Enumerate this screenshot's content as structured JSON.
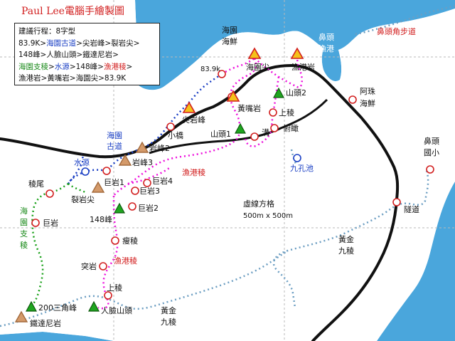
{
  "title": "Paul Lee電腦手繪製圖",
  "legend": {
    "header": "建議行程：8字型",
    "line1": [
      "83.9K>",
      "海園古道",
      ">尖岩峰>裂岩尖>"
    ],
    "line2": [
      "148峰>人臉山頭>鐵達尼岩>"
    ],
    "line3": [
      "海園支稜",
      ">",
      "水源",
      ">148峰>",
      "漁港稜",
      ">"
    ],
    "line4": [
      "漁港岩>黃嘴岩>海園尖>83.9K"
    ]
  },
  "labels": {
    "haiyuan_seafood": [
      "海園",
      "海鮮"
    ],
    "marker_839k": "83.9k",
    "haiyuan_peak": "海園尖",
    "fishing_port_rock": "漁港岩",
    "bitou_port": [
      "鼻頭",
      "漁港"
    ],
    "bitou_cape_trail": "鼻頭角步道",
    "azhu_seafood": [
      "阿珠",
      "海鮮"
    ],
    "mountain_2": "山頭2",
    "upper_ridge_right": "上稜",
    "yellow_beak_rock": "黃嘴岩",
    "sharp_rock_peak": "尖岩峰",
    "mountain_1": "山頭1",
    "gully": "溝",
    "overlook": "俯瞰",
    "nine_hole_pool": "九孔池",
    "small_bridge": "小橋",
    "haiyuan_old_trail": [
      "海園",
      "古道"
    ],
    "rock_peak_2": "岩峰2",
    "rock_peak_3": "岩峰3",
    "water_source": "水源",
    "giant_rock_1": "巨岩1",
    "giant_rock_4": "巨岩4",
    "giant_rock_3": "巨岩3",
    "giant_rock_2": "巨岩2",
    "fishing_port_ridge_top": "漁港稜",
    "ridge_tail": "稜尾",
    "split_rock_peak": "裂岩尖",
    "haiyuan_branch_ridge": [
      "海",
      "園",
      "支",
      "稜"
    ],
    "giant_rock_left": "巨岩",
    "peak_148": "148峰",
    "lean_ridge": "瘦稜",
    "protruding_rock": "突岩",
    "fishing_port_ridge_bottom": "漁港稜",
    "upper_ridge_bottom": "上稜",
    "peak_200": "200三角峰",
    "face_mountain": "人臉山頭",
    "titanic_rock": "鐵達尼岩",
    "golden_ridge_bottom": [
      "黃金",
      "九稜"
    ],
    "golden_ridge_right": [
      "黃金",
      "九稜"
    ],
    "grid_note": [
      "虛線方格",
      "500m x 500m"
    ],
    "bitou_school": [
      "鼻頭",
      "國小"
    ],
    "tunnel": "隧道"
  },
  "colors": {
    "coast": "#111111",
    "sea": "#4aa6dc",
    "land": "#ffffff",
    "trail_blue": "#1a3fc4",
    "trail_magenta": "#ee11dd",
    "trail_green": "#18a018",
    "trail_teal": "#6c9ec2",
    "marker_red": "#d21f1f",
    "triangle_yellow": "#f4c21a",
    "triangle_tan": "#d49a6a",
    "triangle_green": "#1fa51f",
    "road": "#111111",
    "grid": "#b8b8b8"
  }
}
